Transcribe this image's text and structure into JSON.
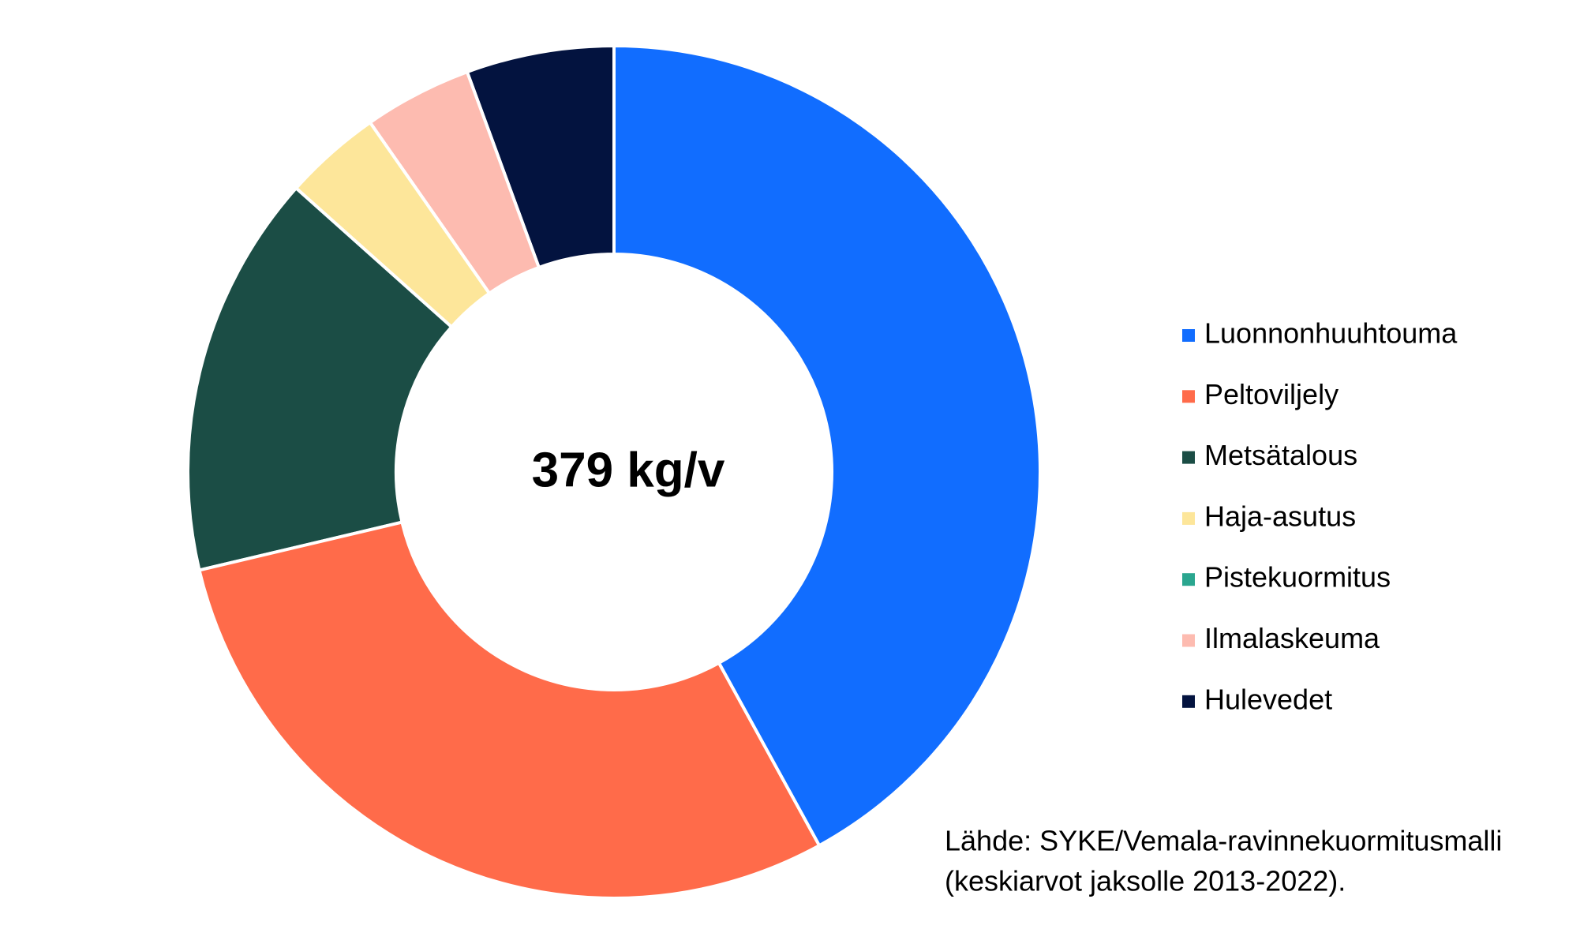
{
  "chart_data": {
    "type": "donut",
    "center_label": "379 kg/v",
    "categories": [
      "Luonnonhuuhtouma",
      "Peltoviljely",
      "Metsätalous",
      "Haja-asutus",
      "Pistekuormitus",
      "Ilmalaskeuma",
      "Hulevedet"
    ],
    "values": [
      42.0,
      29.3,
      15.3,
      3.7,
      0,
      4.1,
      5.6
    ],
    "colors": [
      "#116dff",
      "#ff6b4a",
      "#1b4d45",
      "#fde69a",
      "#2aa68f",
      "#fdbbb0",
      "#03133f"
    ],
    "legend": "right",
    "source": [
      "Lähde: SYKE/Vemala-ravinnekuormitusmalli",
      "(keskiarvot jaksolle 2013-2022)."
    ]
  }
}
